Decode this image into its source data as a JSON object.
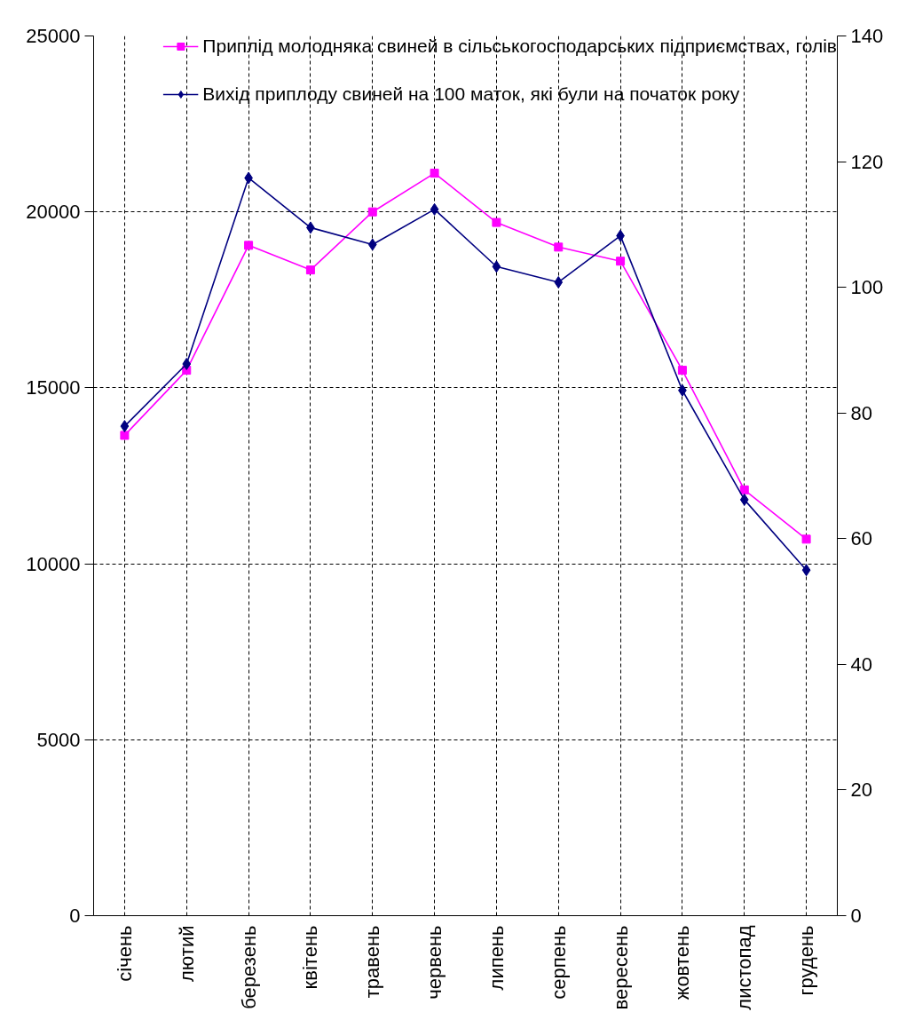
{
  "chart_data": {
    "type": "line",
    "categories": [
      "січень",
      "лютий",
      "березень",
      "квітень",
      "травень",
      "червень",
      "липень",
      "серпень",
      "вересень",
      "жовтень",
      "листопад",
      "грудень"
    ],
    "series": [
      {
        "name": "Приплід молодняка свиней в сільськогосподарських підприємствах, голів",
        "color": "#ff00ff",
        "marker": "square",
        "values": [
          13650,
          15500,
          19050,
          18350,
          20000,
          21100,
          19700,
          19000,
          18600,
          15500,
          12100,
          10700
        ]
      },
      {
        "name": "Вихід приплоду свиней на 100 маток, які були на початок року",
        "color": "#000080",
        "marker": "diamond",
        "axis": "y2",
        "values": [
          77.9,
          87.8,
          117.4,
          109.5,
          106.8,
          112.4,
          103.3,
          100.8,
          108.2,
          83.6,
          66.2,
          55.0
        ]
      }
    ],
    "ylim": [
      0,
      25000
    ],
    "yticks": [
      0,
      5000,
      10000,
      15000,
      20000,
      25000
    ],
    "y2lim": [
      0,
      140
    ],
    "y2ticks": [
      0,
      20,
      40,
      60,
      80,
      100,
      120,
      140
    ],
    "grid": true,
    "legend": "top right"
  }
}
